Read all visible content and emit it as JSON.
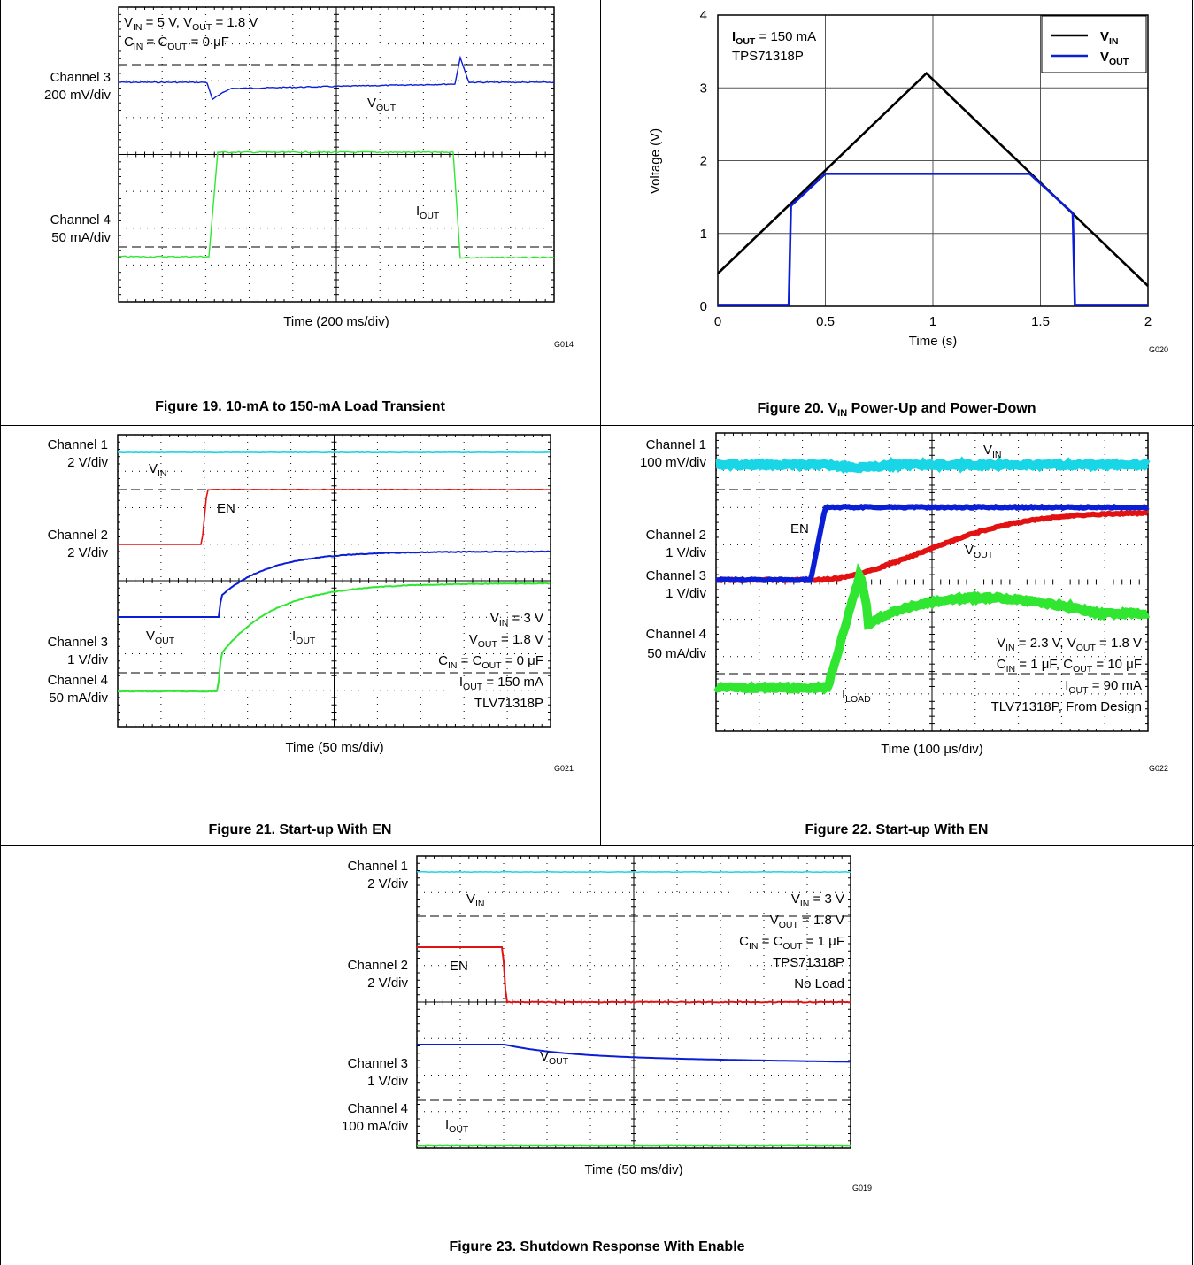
{
  "fig19": {
    "caption": "Figure 19. 10-mA to 150-mA Load Transient",
    "code": "G014",
    "xlabel": "Time (200 ms/div)",
    "annotations": [
      "V_IN = 5 V, V_OUT = 1.8 V",
      "C_IN = C_OUT = 0 μF"
    ],
    "channels": [
      {
        "name": "Channel 3",
        "scale": "200 mV/div"
      },
      {
        "name": "Channel 4",
        "scale": "50 mA/div"
      }
    ],
    "trace_labels": [
      "V_OUT",
      "I_OUT"
    ]
  },
  "fig20": {
    "caption_prefix": "Figure 20. V",
    "caption_sub": "IN",
    "caption_suffix": " Power-Up and Power-Down",
    "code": "G020",
    "annotations": [
      "I_OUT = 150 mA",
      "TPS71318P"
    ],
    "chart_data": {
      "type": "line",
      "xlabel": "Time (s)",
      "ylabel": "Voltage (V)",
      "xlim": [
        0,
        2
      ],
      "ylim": [
        0,
        4
      ],
      "xticks": [
        "0",
        "0.5",
        "1",
        "1.5",
        "2"
      ],
      "yticks": [
        "0",
        "1",
        "2",
        "3",
        "4"
      ],
      "grid": true,
      "legend_position": "top-right",
      "series": [
        {
          "name": "V_IN",
          "color": "#000000",
          "x": [
            0,
            0.97,
            2
          ],
          "y": [
            0.45,
            3.2,
            0.28
          ]
        },
        {
          "name": "V_OUT",
          "color": "#0a1ed6",
          "x": [
            0,
            0.33,
            0.34,
            0.5,
            1.45,
            1.65,
            1.66,
            2
          ],
          "y": [
            0.02,
            0.02,
            1.38,
            1.82,
            1.82,
            1.28,
            0.02,
            0.02
          ]
        }
      ]
    }
  },
  "fig21": {
    "caption": "Figure 21. Start-up With EN",
    "code": "G021",
    "xlabel": "Time (50 ms/div)",
    "annotations": [
      "V_IN = 3 V",
      "V_OUT = 1.8 V",
      "C_IN = C_OUT = 0 μF",
      "I_OUT = 150 mA",
      "TLV71318P"
    ],
    "channels": [
      {
        "name": "Channel 1",
        "scale": "2 V/div"
      },
      {
        "name": "Channel 2",
        "scale": "2 V/div"
      },
      {
        "name": "Channel 3",
        "scale": "1 V/div"
      },
      {
        "name": "Channel 4",
        "scale": "50 mA/div"
      }
    ],
    "trace_labels": [
      "V_IN",
      "EN",
      "V_OUT",
      "I_OUT"
    ]
  },
  "fig22": {
    "caption": "Figure 22. Start-up With EN",
    "code": "G022",
    "xlabel": "Time (100 μs/div)",
    "annotations": [
      "V_IN = 2.3 V, V_OUT = 1.8 V",
      "C_IN = 1 μF, C_OUT = 10 μF",
      "I_OUT = 90 mA",
      "TLV71318P, From Design"
    ],
    "channels": [
      {
        "name": "Channel 1",
        "scale": "100 mV/div"
      },
      {
        "name": "Channel 2",
        "scale": "1 V/div"
      },
      {
        "name": "Channel 3",
        "scale": "1 V/div"
      },
      {
        "name": "Channel 4",
        "scale": "50 mA/div"
      }
    ],
    "trace_labels": [
      "V_IN",
      "EN",
      "V_OUT",
      "I_LOAD"
    ]
  },
  "fig23": {
    "caption": "Figure 23. Shutdown Response With Enable",
    "code": "G019",
    "xlabel": "Time (50 ms/div)",
    "annotations": [
      "V_IN = 3 V",
      "V_OUT = 1.8 V",
      "C_IN = C_OUT = 1 μF",
      "TPS71318P",
      "No Load"
    ],
    "channels": [
      {
        "name": "Channel 1",
        "scale": "2 V/div"
      },
      {
        "name": "Channel 2",
        "scale": "2 V/div"
      },
      {
        "name": "Channel 3",
        "scale": "1 V/div"
      },
      {
        "name": "Channel 4",
        "scale": "100 mA/div"
      }
    ],
    "trace_labels": [
      "V_IN",
      "EN",
      "V_OUT",
      "I_OUT"
    ]
  },
  "colors": {
    "cyan": "#19d6e6",
    "red": "#e21212",
    "blue": "#0a1ed6",
    "green": "#30e630",
    "black": "#000000"
  }
}
